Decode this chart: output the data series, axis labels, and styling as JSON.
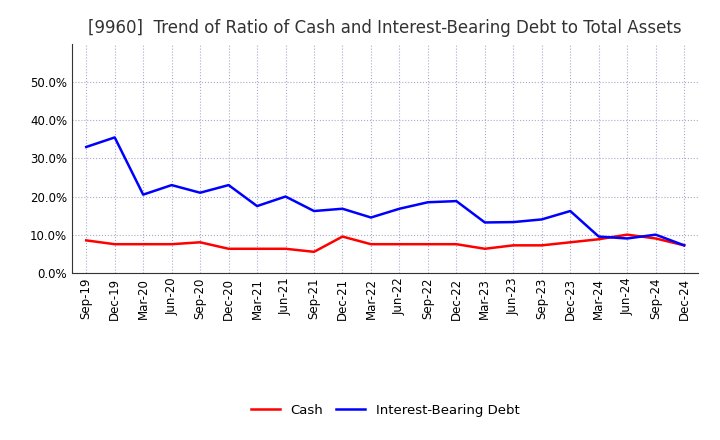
{
  "title": "[9960]  Trend of Ratio of Cash and Interest-Bearing Debt to Total Assets",
  "x_labels": [
    "Sep-19",
    "Dec-19",
    "Mar-20",
    "Jun-20",
    "Sep-20",
    "Dec-20",
    "Mar-21",
    "Jun-21",
    "Sep-21",
    "Dec-21",
    "Mar-22",
    "Jun-22",
    "Sep-22",
    "Dec-22",
    "Mar-23",
    "Jun-23",
    "Sep-23",
    "Dec-23",
    "Mar-24",
    "Jun-24",
    "Sep-24",
    "Dec-24"
  ],
  "cash": [
    0.085,
    0.075,
    0.075,
    0.075,
    0.08,
    0.063,
    0.063,
    0.063,
    0.055,
    0.095,
    0.075,
    0.075,
    0.075,
    0.075,
    0.063,
    0.072,
    0.072,
    0.08,
    0.088,
    0.1,
    0.09,
    0.072
  ],
  "interest_bearing_debt": [
    0.33,
    0.355,
    0.205,
    0.23,
    0.21,
    0.23,
    0.175,
    0.2,
    0.162,
    0.168,
    0.145,
    0.168,
    0.185,
    0.188,
    0.132,
    0.133,
    0.14,
    0.162,
    0.095,
    0.09,
    0.1,
    0.072
  ],
  "cash_color": "#FF0000",
  "debt_color": "#0000FF",
  "background_color": "#FFFFFF",
  "plot_bg_color": "#FFFFFF",
  "grid_color": "#AAAACC",
  "ylim": [
    0.0,
    0.6
  ],
  "yticks": [
    0.0,
    0.1,
    0.2,
    0.3,
    0.4,
    0.5
  ],
  "legend_cash": "Cash",
  "legend_debt": "Interest-Bearing Debt",
  "title_fontsize": 12,
  "title_color": "#333333",
  "tick_fontsize": 8.5,
  "line_width": 1.8
}
